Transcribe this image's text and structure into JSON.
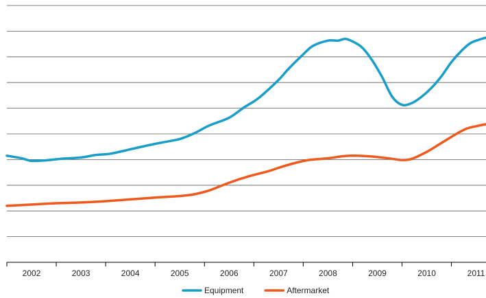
{
  "chart_data": {
    "type": "line",
    "title": "",
    "xlabel": "",
    "ylabel": "",
    "x_ticks": [
      "2002",
      "2003",
      "2004",
      "2005",
      "2006",
      "2007",
      "2008",
      "2009",
      "2010",
      "2011"
    ],
    "x_range": [
      2001.5,
      2011.2
    ],
    "y_range": [
      0,
      100
    ],
    "y_gridlines": [
      10,
      20,
      30,
      40,
      50,
      60,
      70,
      80,
      90,
      100
    ],
    "y_tick_labels_visible": false,
    "grid": true,
    "legend_position": "bottom-center",
    "series": [
      {
        "name": "Equipment",
        "color": "#1a9dc8",
        "x": [
          2001.5,
          2001.8,
          2002.0,
          2002.3,
          2002.6,
          2003.0,
          2003.3,
          2003.6,
          2004.0,
          2004.3,
          2004.6,
          2005.0,
          2005.3,
          2005.6,
          2006.0,
          2006.3,
          2006.6,
          2007.0,
          2007.2,
          2007.5,
          2007.7,
          2008.0,
          2008.2,
          2008.35,
          2008.5,
          2008.7,
          2008.9,
          2009.1,
          2009.3,
          2009.5,
          2009.7,
          2009.9,
          2010.1,
          2010.3,
          2010.5,
          2010.7,
          2010.9,
          2011.2
        ],
        "values": [
          41.5,
          40.5,
          39.5,
          39.7,
          40.3,
          40.8,
          41.8,
          42.3,
          44.0,
          45.3,
          46.5,
          48.0,
          50.3,
          53.3,
          56.3,
          60.3,
          64.0,
          71.0,
          75.3,
          81.0,
          84.3,
          86.3,
          86.3,
          87.0,
          86.0,
          83.5,
          78.5,
          72.0,
          64.5,
          61.3,
          62.0,
          64.5,
          68.0,
          72.5,
          78.0,
          82.3,
          85.5,
          87.5
        ]
      },
      {
        "name": "Aftermarket",
        "color": "#ee5a1e",
        "x": [
          2001.5,
          2002.0,
          2002.5,
          2003.0,
          2003.5,
          2004.0,
          2004.5,
          2005.0,
          2005.3,
          2005.6,
          2006.0,
          2006.4,
          2006.8,
          2007.0,
          2007.3,
          2007.6,
          2008.0,
          2008.3,
          2008.5,
          2008.8,
          2009.0,
          2009.3,
          2009.5,
          2009.7,
          2010.0,
          2010.3,
          2010.6,
          2010.8,
          2011.0,
          2011.2
        ],
        "values": [
          22.0,
          22.5,
          23.0,
          23.3,
          23.8,
          24.5,
          25.2,
          25.8,
          26.5,
          28.0,
          31.0,
          33.5,
          35.5,
          36.8,
          38.5,
          39.8,
          40.5,
          41.3,
          41.5,
          41.3,
          41.0,
          40.3,
          39.8,
          40.3,
          43.0,
          46.5,
          50.0,
          52.0,
          53.0,
          53.8
        ]
      }
    ]
  }
}
